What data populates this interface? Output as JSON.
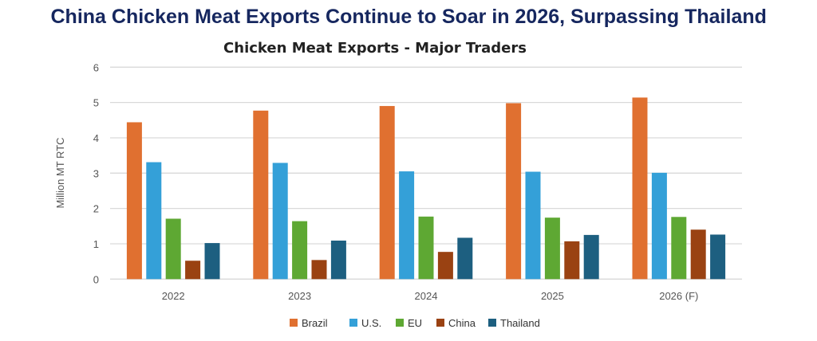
{
  "headline": "China Chicken Meat Exports Continue to Soar in 2026, Surpassing Thailand",
  "chart_data": {
    "type": "bar",
    "title": "Chicken Meat Exports - Major Traders",
    "xlabel": "",
    "ylabel": "Million MT RTC",
    "ylim": [
      0,
      6
    ],
    "yticks": [
      "0",
      "1",
      "2",
      "3",
      "4",
      "5",
      "6"
    ],
    "grid": true,
    "legend_position": "bottom",
    "categories": [
      "2022",
      "2023",
      "2024",
      "2025",
      "2026 (F)"
    ],
    "series": [
      {
        "name": "Brazil",
        "color": "#e07030",
        "values": [
          4.44,
          4.77,
          4.9,
          4.98,
          5.14
        ]
      },
      {
        "name": "U.S.",
        "color": "#34a0d8",
        "values": [
          3.31,
          3.29,
          3.05,
          3.04,
          3.01
        ]
      },
      {
        "name": "EU",
        "color": "#5ea833",
        "values": [
          1.71,
          1.64,
          1.77,
          1.74,
          1.76
        ]
      },
      {
        "name": "China",
        "color": "#9a4212",
        "values": [
          0.52,
          0.54,
          0.77,
          1.07,
          1.4
        ]
      },
      {
        "name": "Thailand",
        "color": "#1d5f80",
        "values": [
          1.02,
          1.09,
          1.17,
          1.25,
          1.26
        ]
      }
    ]
  }
}
